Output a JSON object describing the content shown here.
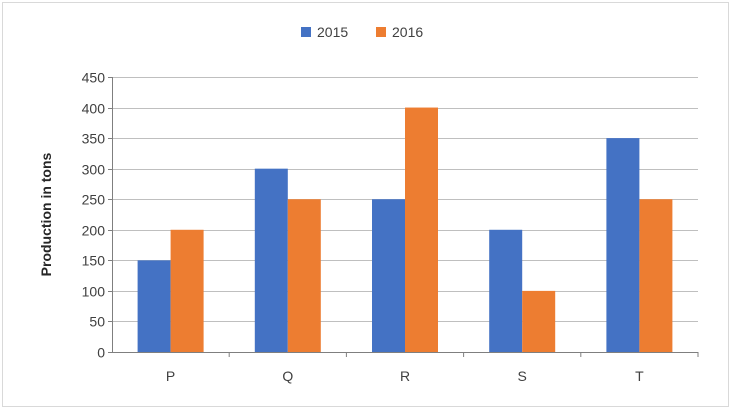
{
  "chart_data": {
    "type": "bar",
    "title": "",
    "xlabel": "",
    "ylabel": "Production in tons",
    "categories": [
      "P",
      "Q",
      "R",
      "S",
      "T"
    ],
    "series": [
      {
        "name": "2015",
        "color": "#4472c4",
        "values": [
          150,
          300,
          250,
          200,
          350
        ]
      },
      {
        "name": "2016",
        "color": "#ed7d31",
        "values": [
          200,
          250,
          400,
          100,
          250
        ]
      }
    ],
    "ylim": [
      0,
      450
    ],
    "yticks": [
      "0",
      "50",
      "100",
      "150",
      "200",
      "250",
      "300",
      "350",
      "400",
      "450"
    ],
    "grid": true,
    "legend_position": "top-center"
  }
}
